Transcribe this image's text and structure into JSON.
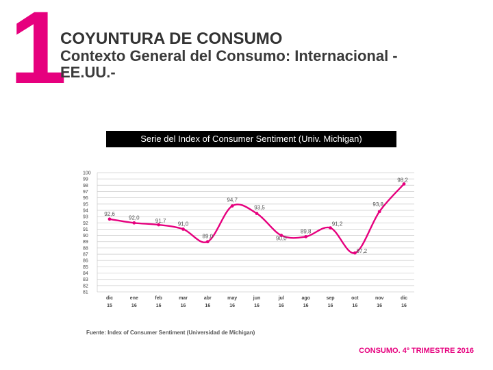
{
  "header": {
    "number": "1",
    "title": "COYUNTURA DE CONSUMO",
    "subtitle_line1": "Contexto General del Consumo: Internacional -",
    "subtitle_line2": "EE.UU.-"
  },
  "source_note": "Fuente:  Index of Consumer Sentiment (Universidad de Michigan)",
  "footer": "CONSUMO. 4º TRIMESTRE 2016",
  "colors": {
    "accent": "#e6007e",
    "line": "#e6007e",
    "grid": "#cfcfcf"
  },
  "chart_data": {
    "type": "line",
    "title": "Serie del Index of Consumer Sentiment (Univ. Michigan)",
    "ylim": [
      81,
      100
    ],
    "yticks": [
      81,
      82,
      83,
      84,
      85,
      86,
      87,
      88,
      89,
      90,
      91,
      92,
      93,
      94,
      95,
      96,
      97,
      98,
      99,
      100
    ],
    "categories": [
      [
        "dic",
        "15"
      ],
      [
        "ene",
        "16"
      ],
      [
        "feb",
        "16"
      ],
      [
        "mar",
        "16"
      ],
      [
        "abr",
        "16"
      ],
      [
        "may",
        "16"
      ],
      [
        "jun",
        "16"
      ],
      [
        "jul",
        "16"
      ],
      [
        "ago",
        "16"
      ],
      [
        "sep",
        "16"
      ],
      [
        "oct",
        "16"
      ],
      [
        "nov",
        "16"
      ],
      [
        "dic",
        "16"
      ]
    ],
    "values": [
      92.6,
      92.0,
      91.7,
      91.0,
      89.0,
      94.7,
      93.5,
      90.0,
      89.8,
      91.2,
      87.2,
      93.8,
      98.2
    ],
    "labels": [
      "92,6",
      "92,0",
      "91,7",
      "91,0",
      "89,0",
      "94,7",
      "93,5",
      "90,0",
      "89,8",
      "91,2",
      "87,2",
      "93,8",
      "98,2"
    ],
    "grid": true,
    "legend": "none"
  }
}
